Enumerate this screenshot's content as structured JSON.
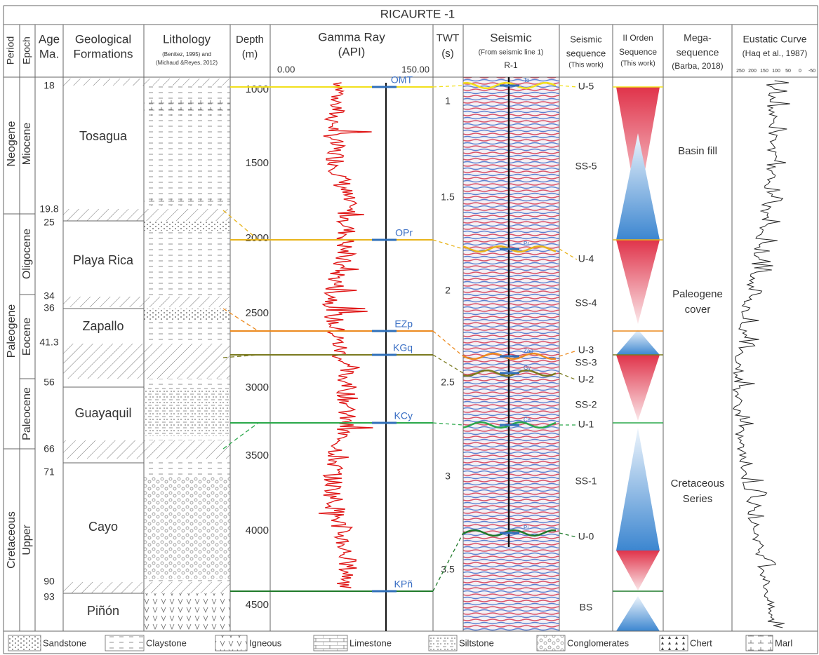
{
  "title": "RICAURTE -1",
  "header": {
    "period": "Period",
    "epoch": "Epoch",
    "age": [
      "Age",
      "Ma."
    ],
    "formations": [
      "Geological",
      "Formations"
    ],
    "lithology": [
      "Lithology",
      "(Benitez, 1995) and",
      "(Michaud &Reyes, 2012)"
    ],
    "depth": [
      "Depth",
      "(m)"
    ],
    "gamma_ray": [
      "Gamma Ray",
      "(API)"
    ],
    "gamma_scale": [
      "0.00",
      "150.00"
    ],
    "twt": [
      "TWT",
      "(s)"
    ],
    "seismic": [
      "Seismic",
      "(From seismic line 1)",
      "R-1"
    ],
    "seismic_sequence": [
      "Seismic",
      "sequence",
      "(This work)"
    ],
    "second_order": [
      "II Orden",
      "Sequence",
      "(This work)"
    ],
    "megasequence": [
      "Mega-",
      "sequence",
      "(Barba, 2018)"
    ],
    "eustatic": [
      "Eustatic Curve",
      "(Haq et al., 1987)"
    ],
    "eustatic_scale": [
      "250",
      "200",
      "150",
      "100",
      "50",
      "0",
      "-50"
    ]
  },
  "periods": [
    "Neogene",
    "Paleogene",
    "Cretaceous"
  ],
  "epochs": [
    "Miocene",
    "Oligocene",
    "Eocene",
    "Paleocene",
    "Upper"
  ],
  "ages": [
    "18",
    "19.8",
    "25",
    "34",
    "36",
    "41.3",
    "56",
    "66",
    "71",
    "90",
    "93"
  ],
  "formations": [
    "Tosagua",
    "Playa Rica",
    "Zapallo",
    "Guayaquil",
    "Cayo",
    "Piñón"
  ],
  "depths": [
    "1000",
    "1500",
    "2000",
    "2500",
    "3000",
    "3500",
    "4000",
    "4500"
  ],
  "horizons": [
    "OMT",
    "OPr",
    "EZp",
    "KGq",
    "KCy",
    "KPñ"
  ],
  "twt": [
    "1",
    "1.5",
    "2",
    "2.5",
    "3",
    "3.5"
  ],
  "seismic_picks": [
    "To",
    "Pr",
    "Zap",
    "Gy",
    "Ca",
    "Pi"
  ],
  "sequences": [
    "U-5",
    "SS-5",
    "U-4",
    "SS-4",
    "U-3",
    "SS-3",
    "U-2",
    "SS-2",
    "U-1",
    "SS-1",
    "U-0",
    "BS"
  ],
  "megasequences": [
    [
      "Basin fill"
    ],
    [
      "Paleogene",
      "cover"
    ],
    [
      "Cretaceous",
      "Series"
    ]
  ],
  "legend": [
    "Sandstone",
    "Claystone",
    "Igneous",
    "Limestone",
    "Siltstone",
    "Conglomerates",
    "Chert",
    "Marl"
  ]
}
